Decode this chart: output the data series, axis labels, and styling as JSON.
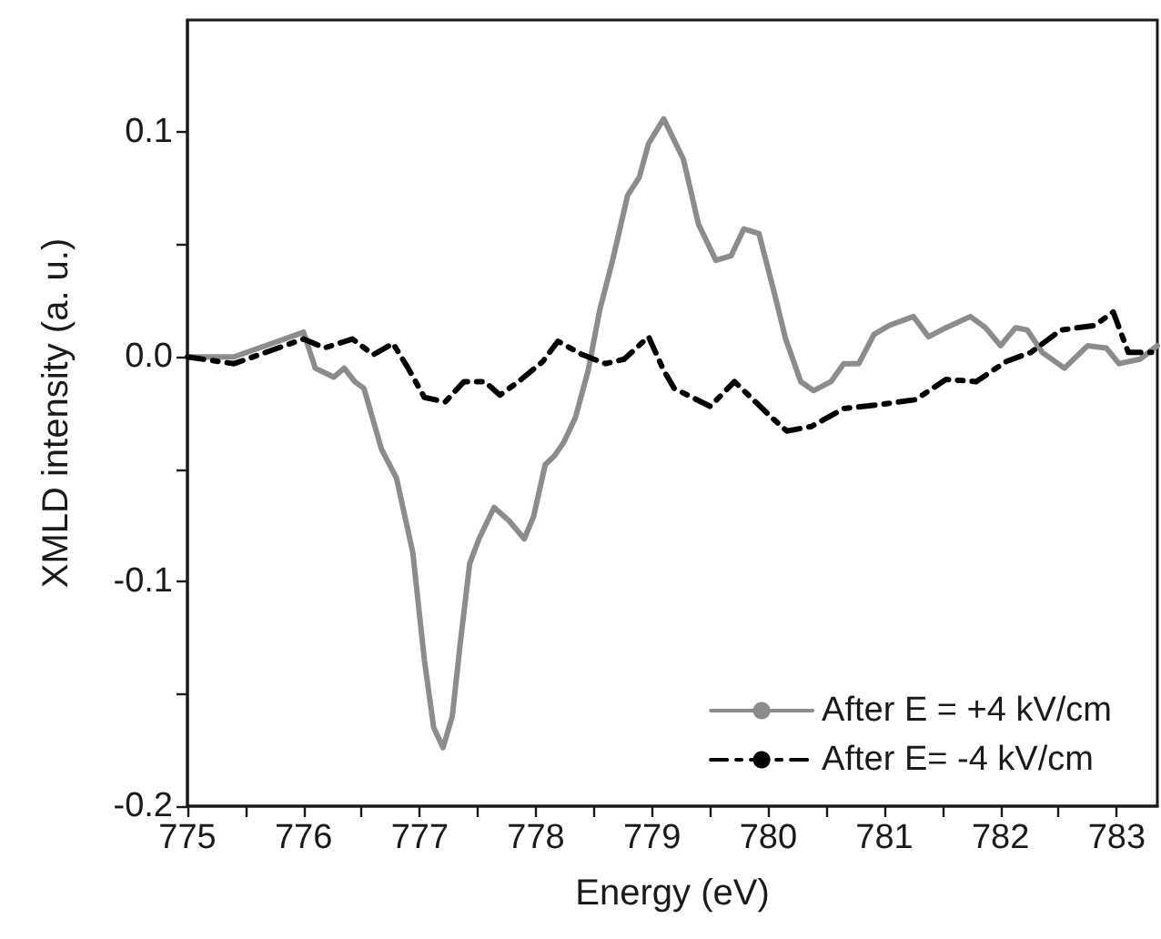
{
  "chart_data": {
    "type": "line",
    "xlabel": "Energy (eV)",
    "ylabel": "XMLD intensity (a. u.)",
    "xlim": [
      775,
      783.35
    ],
    "ylim": [
      -0.2,
      0.15
    ],
    "xticks": [
      775,
      {
        "value": 775.5,
        "label": null
      },
      776,
      {
        "value": 776.5,
        "label": null
      },
      777,
      {
        "value": 777.5,
        "label": null
      },
      778,
      {
        "value": 778.5,
        "label": null
      },
      779,
      {
        "value": 779.5,
        "label": null
      },
      780,
      {
        "value": 780.5,
        "label": null
      },
      781,
      {
        "value": 781.5,
        "label": null
      },
      782,
      {
        "value": 782.5,
        "label": null
      },
      783
    ],
    "yticks": [
      -0.2,
      {
        "value": -0.15,
        "label": null
      },
      -0.1,
      {
        "value": -0.05,
        "label": null
      },
      {
        "value": 0,
        "label": "0.0"
      },
      {
        "value": 0.05,
        "label": null
      },
      0.1
    ],
    "grid": false,
    "legend": "bottom right",
    "marker": "none",
    "series": [
      {
        "name": "After E = +4 kV/cm",
        "color": "#8c8c8c",
        "line_style": "solid",
        "x": [
          775,
          775.4,
          776.0,
          776.1,
          776.18,
          776.26,
          776.35,
          776.44,
          776.52,
          776.67,
          776.8,
          776.94,
          777.04,
          777.12,
          777.2,
          777.28,
          777.35,
          777.43,
          777.51,
          777.64,
          777.77,
          777.9,
          777.98,
          778.08,
          778.16,
          778.24,
          778.34,
          778.45,
          778.55,
          778.66,
          778.79,
          778.89,
          778.97,
          779.1,
          779.27,
          779.4,
          779.55,
          779.68,
          779.79,
          779.92,
          780.05,
          780.15,
          780.28,
          780.39,
          780.54,
          780.65,
          780.78,
          780.91,
          781.04,
          781.25,
          781.38,
          781.53,
          781.74,
          781.87,
          782.0,
          782.13,
          782.23,
          782.36,
          782.55,
          782.75,
          782.91,
          783.02,
          783.2,
          783.35
        ],
        "values": [
          0,
          0,
          0.011,
          -0.005,
          -0.007,
          -0.009,
          -0.005,
          -0.011,
          -0.014,
          -0.041,
          -0.054,
          -0.087,
          -0.135,
          -0.165,
          -0.174,
          -0.16,
          -0.127,
          -0.092,
          -0.081,
          -0.067,
          -0.073,
          -0.081,
          -0.071,
          -0.048,
          -0.044,
          -0.038,
          -0.027,
          -0.006,
          0.021,
          0.043,
          0.072,
          0.08,
          0.095,
          0.106,
          0.088,
          0.059,
          0.043,
          0.045,
          0.057,
          0.055,
          0.029,
          0.008,
          -0.011,
          -0.015,
          -0.011,
          -0.003,
          -0.003,
          0.01,
          0.014,
          0.018,
          0.009,
          0.013,
          0.018,
          0.013,
          0.005,
          0.013,
          0.012,
          0.002,
          -0.005,
          0.005,
          0.004,
          -0.003,
          -0.001,
          0.005
        ]
      },
      {
        "name": "After E= -4 kV/cm",
        "color": "#000000",
        "line_style": "dashed",
        "x": [
          775,
          775.4,
          776,
          776.18,
          776.42,
          776.6,
          776.77,
          776.9,
          777.04,
          777.22,
          777.38,
          777.56,
          777.69,
          777.85,
          778.06,
          778.19,
          778.4,
          778.6,
          778.76,
          778.97,
          779.1,
          779.19,
          779.5,
          779.71,
          780.03,
          780.16,
          780.37,
          780.65,
          780.99,
          781.27,
          781.53,
          781.79,
          782.05,
          782.26,
          782.52,
          782.81,
          782.97,
          783.1,
          783.3
        ],
        "values": [
          0,
          -0.003,
          0.008,
          0.004,
          0.008,
          0.001,
          0.006,
          -0.005,
          -0.018,
          -0.02,
          -0.011,
          -0.011,
          -0.017,
          -0.011,
          -0.002,
          0.007,
          0.001,
          -0.003,
          -0.001,
          0.009,
          -0.006,
          -0.014,
          -0.022,
          -0.011,
          -0.027,
          -0.033,
          -0.031,
          -0.023,
          -0.021,
          -0.019,
          -0.01,
          -0.011,
          -0.002,
          0.002,
          0.012,
          0.014,
          0.02,
          0.002,
          0.002
        ]
      }
    ]
  }
}
